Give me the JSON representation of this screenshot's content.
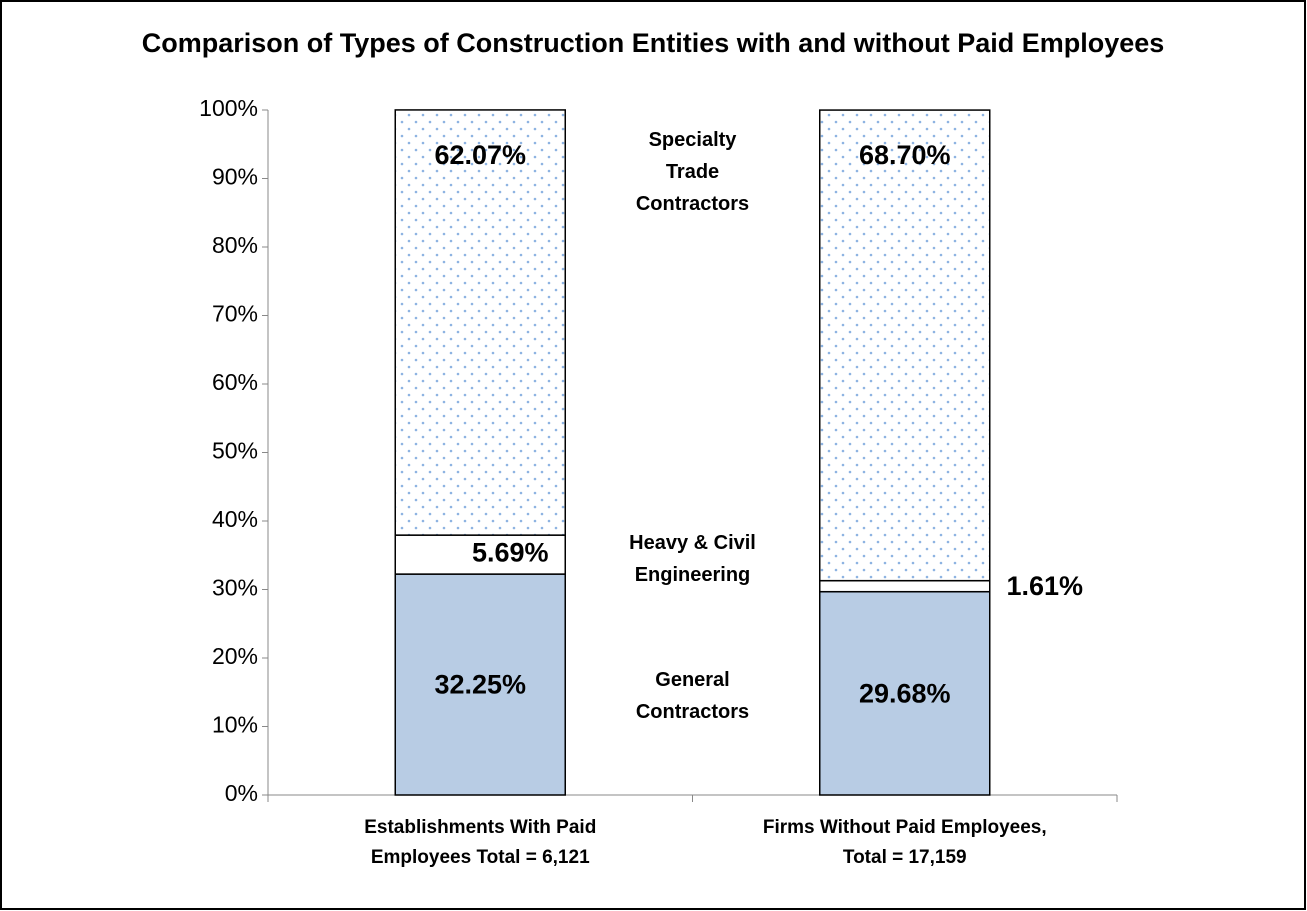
{
  "chart_data": {
    "type": "stacked_bar",
    "title": "Comparison of Types of Construction Entities with and without Paid Employees",
    "categories": [
      "Establishments With Paid\nEmployees Total = 6,121",
      "Firms Without Paid Employees,\nTotal = 17,159"
    ],
    "series": [
      {
        "name": "General\nContractors",
        "color": "#b8cce4",
        "values": [
          32.25,
          29.68
        ],
        "value_labels": [
          "32.25%",
          "29.68%"
        ]
      },
      {
        "name": "Heavy & Civil\nEngineering",
        "color": "#ffffff",
        "values": [
          5.69,
          1.61
        ],
        "value_labels": [
          "5.69%",
          "1.61%"
        ]
      },
      {
        "name": "Specialty\nTrade\nContractors",
        "color": "#8db3e2",
        "pattern": "dots",
        "values": [
          62.07,
          68.7
        ],
        "value_labels": [
          "62.07%",
          "68.70%"
        ]
      }
    ],
    "ylim": [
      0,
      100
    ],
    "yticks": [
      {
        "value": 0,
        "label": "0%"
      },
      {
        "value": 10,
        "label": "10%"
      },
      {
        "value": 20,
        "label": "20%"
      },
      {
        "value": 30,
        "label": "30%"
      },
      {
        "value": 40,
        "label": "40%"
      },
      {
        "value": 50,
        "label": "50%"
      },
      {
        "value": 60,
        "label": "60%"
      },
      {
        "value": 70,
        "label": "70%"
      },
      {
        "value": 80,
        "label": "80%"
      },
      {
        "value": 90,
        "label": "90%"
      },
      {
        "value": 100,
        "label": "100%"
      }
    ],
    "grid": false
  }
}
